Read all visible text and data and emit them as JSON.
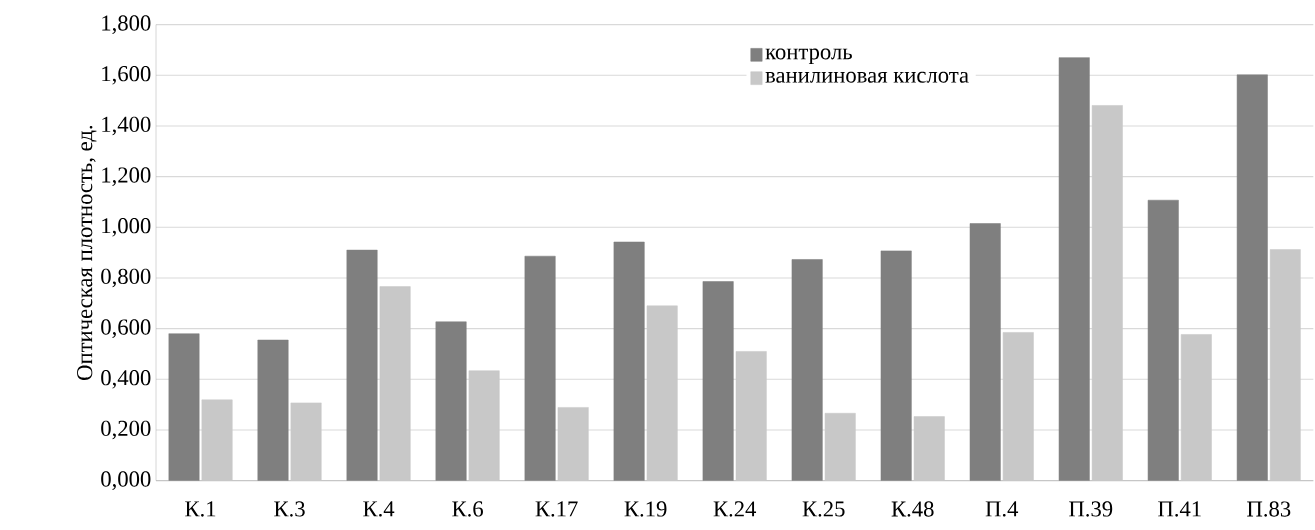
{
  "chart_data": {
    "type": "bar",
    "ylabel": "Оптическая плотность, ед.",
    "categories": [
      "К.1",
      "К.3",
      "К.4",
      "К.6",
      "К.17",
      "К.19",
      "К.24",
      "К.25",
      "К.48",
      "П.4",
      "П.39",
      "П.41",
      "П.83"
    ],
    "series": [
      {
        "name": "контроль",
        "color": "#7f7f7f",
        "values": [
          0.58,
          0.555,
          0.91,
          0.627,
          0.886,
          0.942,
          0.786,
          0.873,
          0.907,
          1.015,
          1.67,
          1.107,
          1.602
        ]
      },
      {
        "name": "ванилиновая кислота",
        "color": "#c8c8c8",
        "values": [
          0.319,
          0.307,
          0.766,
          0.434,
          0.289,
          0.69,
          0.51,
          0.266,
          0.253,
          0.585,
          1.481,
          0.577,
          0.912
        ]
      }
    ],
    "ylim": [
      0,
      1.8
    ],
    "yticks": [
      {
        "value": 0,
        "label": "0,000"
      },
      {
        "value": 0.2,
        "label": "0,200"
      },
      {
        "value": 0.4,
        "label": "0,400"
      },
      {
        "value": 0.6,
        "label": "0,600"
      },
      {
        "value": 0.8,
        "label": "0,800"
      },
      {
        "value": 1.0,
        "label": "1,000"
      },
      {
        "value": 1.2,
        "label": "1,200"
      },
      {
        "value": 1.4,
        "label": "1,400"
      },
      {
        "value": 1.6,
        "label": "1,600"
      },
      {
        "value": 1.8,
        "label": "1,800"
      }
    ],
    "grid": "y",
    "legend": "top"
  }
}
